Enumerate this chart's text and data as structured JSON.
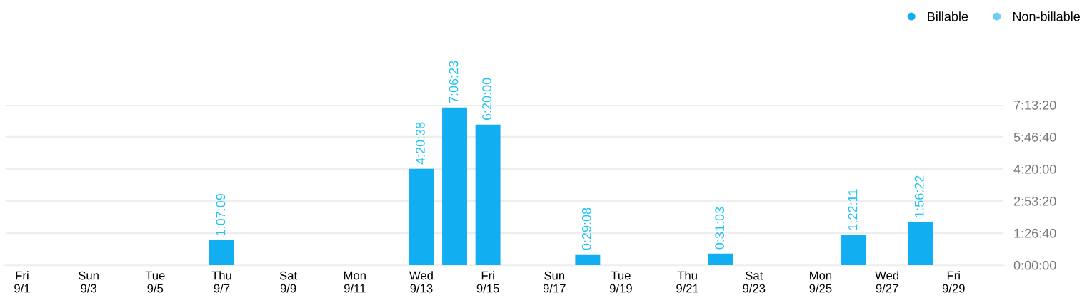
{
  "chart_data": {
    "type": "bar",
    "categories": [
      "Fri\n9/1",
      null,
      "Sun\n9/3",
      null,
      "Tue\n9/5",
      null,
      "Thu\n9/7",
      null,
      "Sat\n9/9",
      null,
      "Mon\n9/11",
      null,
      "Wed\n9/13",
      null,
      "Fri\n9/15",
      null,
      "Sun\n9/17",
      null,
      "Tue\n9/19",
      null,
      "Thu\n9/21",
      null,
      "Sat\n9/23",
      null,
      "Mon\n9/25",
      null,
      "Wed\n9/27",
      null,
      "Fri\n9/29",
      null
    ],
    "series": [
      {
        "name": "Billable",
        "color": "#12aef2",
        "values": [
          null,
          null,
          null,
          null,
          null,
          null,
          4029,
          null,
          null,
          null,
          null,
          null,
          15638,
          25583,
          22800,
          null,
          null,
          1748,
          null,
          null,
          null,
          1863,
          null,
          null,
          null,
          4931,
          null,
          6982,
          null,
          null
        ],
        "value_labels": [
          null,
          null,
          null,
          null,
          null,
          null,
          "1:07:09",
          null,
          null,
          null,
          null,
          null,
          "4:20:38",
          "7:06:23",
          "6:20:00",
          null,
          null,
          "0:29:08",
          null,
          null,
          null,
          "0:31:03",
          null,
          null,
          null,
          "1:22:11",
          null,
          "1:56:22",
          null,
          null
        ]
      },
      {
        "name": "Non-billable",
        "color": "#6dcff6",
        "values": [
          null,
          null,
          null,
          null,
          null,
          null,
          null,
          null,
          null,
          null,
          null,
          null,
          null,
          null,
          null,
          null,
          null,
          null,
          null,
          null,
          null,
          null,
          null,
          null,
          null,
          null,
          null,
          null,
          null,
          null
        ]
      }
    ],
    "ylim": [
      0,
      26000
    ],
    "yticks": [
      {
        "value": 0,
        "label": "0:00:00"
      },
      {
        "value": 5200,
        "label": "1:26:40"
      },
      {
        "value": 10400,
        "label": "2:53:20"
      },
      {
        "value": 15600,
        "label": "4:20:00"
      },
      {
        "value": 20800,
        "label": "5:46:40"
      },
      {
        "value": 26000,
        "label": "7:13:20"
      }
    ],
    "grid": "y",
    "legend": "top right"
  }
}
